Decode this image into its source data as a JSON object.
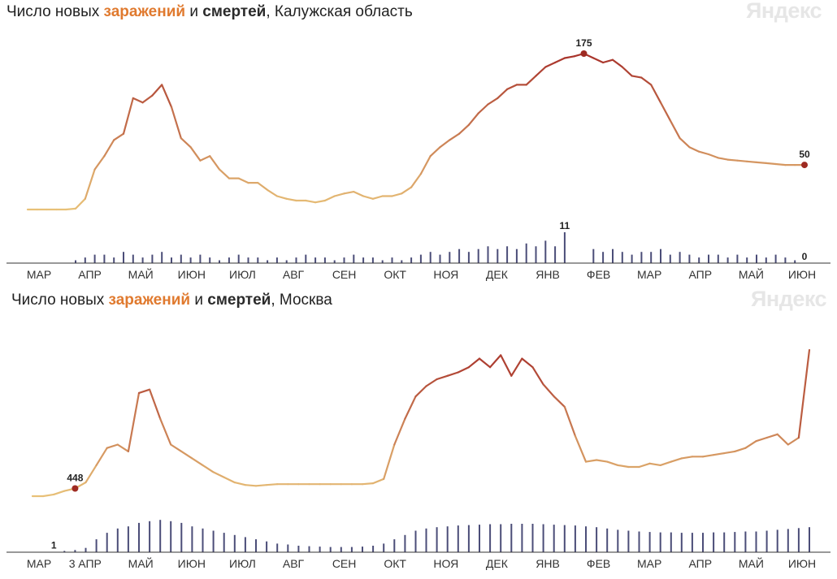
{
  "colors": {
    "low": "#e8c178",
    "high": "#a8322a",
    "deaths": "#4b4d78",
    "marker": "#9e2a22",
    "axis": "#333333",
    "watermark": "#e6e6e6"
  },
  "panels": [
    {
      "title": {
        "prefix": "Число новых ",
        "infections": "заражений",
        "middle": " и ",
        "deaths": "смертей",
        "region": ", Калужская область"
      },
      "watermark": "Яндекс",
      "chart_data": {
        "type": "line",
        "x_axis_months": [
          "МАР",
          "АПР",
          "МАЙ",
          "ИЮН",
          "ИЮЛ",
          "АВГ",
          "СЕН",
          "ОКТ",
          "НОЯ",
          "ДЕК",
          "ЯНВ",
          "ФЕВ",
          "МАР",
          "АПР",
          "МАЙ",
          "ИЮН"
        ],
        "series": [
          {
            "name": "заражений",
            "kind": "line",
            "values": [
              0,
              0,
              0,
              0,
              0,
              1,
              12,
              45,
              60,
              78,
              85,
              125,
              120,
              128,
              140,
              115,
              80,
              70,
              55,
              60,
              45,
              35,
              35,
              30,
              30,
              22,
              15,
              12,
              10,
              10,
              8,
              10,
              15,
              18,
              20,
              15,
              12,
              15,
              15,
              18,
              25,
              40,
              60,
              70,
              78,
              85,
              95,
              108,
              118,
              125,
              135,
              140,
              140,
              150,
              160,
              165,
              170,
              172,
              175,
              170,
              165,
              168,
              160,
              150,
              148,
              140,
              120,
              100,
              80,
              70,
              65,
              62,
              58,
              56,
              55,
              54,
              53,
              52,
              51,
              50,
              50,
              50
            ]
          },
          {
            "name": "смертей",
            "kind": "bars",
            "values": [
              0,
              0,
              0,
              0,
              0,
              1,
              2,
              3,
              3,
              2,
              4,
              3,
              2,
              3,
              4,
              2,
              3,
              2,
              3,
              2,
              1,
              2,
              3,
              2,
              2,
              1,
              2,
              1,
              2,
              3,
              2,
              2,
              1,
              2,
              3,
              2,
              2,
              1,
              2,
              1,
              2,
              3,
              4,
              3,
              4,
              5,
              4,
              5,
              6,
              5,
              6,
              5,
              7,
              6,
              8,
              6,
              11,
              0,
              0,
              5,
              4,
              5,
              4,
              3,
              4,
              4,
              5,
              3,
              4,
              3,
              2,
              3,
              3,
              2,
              3,
              2,
              3,
              2,
              3,
              2,
              1,
              0
            ]
          }
        ],
        "annotations": [
          {
            "label": "175",
            "series": "заражений",
            "value": 175
          },
          {
            "label": "50",
            "series": "заражений",
            "value": 50
          },
          {
            "label": "11",
            "series": "смертей",
            "value": 11
          },
          {
            "label": "0",
            "series": "смертей",
            "value": 0
          }
        ],
        "grid": false
      }
    },
    {
      "title": {
        "prefix": "Число новых ",
        "infections": "заражений",
        "middle": " и ",
        "deaths": "смертей",
        "region": ", Москва"
      },
      "watermark": "Яндекс",
      "chart_data": {
        "type": "line",
        "x_axis_months": [
          "МАР",
          "АПР",
          "МАЙ",
          "ИЮН",
          "ИЮЛ",
          "АВГ",
          "СЕН",
          "ОКТ",
          "НОЯ",
          "ДЕК",
          "ЯНВ",
          "ФЕВ",
          "МАР",
          "АПР",
          "МАЙ",
          "ИЮН"
        ],
        "x_axis_extra": "3",
        "series": [
          {
            "name": "заражений",
            "kind": "line",
            "values": [
              0,
              0,
              100,
              300,
              448,
              800,
              1800,
              2800,
              3000,
              2600,
              6000,
              6200,
              4500,
              3000,
              2600,
              2200,
              1800,
              1400,
              1100,
              800,
              650,
              600,
              650,
              700,
              700,
              700,
              700,
              700,
              700,
              700,
              700,
              700,
              750,
              1000,
              3000,
              4500,
              5800,
              6400,
              6800,
              7000,
              7200,
              7500,
              8000,
              7500,
              8200,
              7000,
              8000,
              7500,
              6500,
              5800,
              5200,
              3500,
              2000,
              2100,
              2000,
              1800,
              1700,
              1700,
              1900,
              1800,
              2000,
              2200,
              2300,
              2300,
              2400,
              2500,
              2600,
              2800,
              3200,
              3400,
              3600,
              3000,
              3400,
              8500
            ]
          },
          {
            "name": "смертей",
            "kind": "bars",
            "values": [
              0,
              0,
              1,
              3,
              5,
              10,
              30,
              45,
              55,
              60,
              68,
              72,
              75,
              72,
              68,
              60,
              55,
              50,
              45,
              40,
              35,
              30,
              25,
              20,
              18,
              15,
              14,
              13,
              12,
              12,
              12,
              13,
              15,
              20,
              30,
              40,
              50,
              55,
              58,
              60,
              62,
              63,
              64,
              65,
              65,
              66,
              66,
              66,
              65,
              64,
              63,
              62,
              60,
              58,
              55,
              52,
              50,
              48,
              47,
              46,
              46,
              45,
              45,
              45,
              46,
              46,
              47,
              48,
              48,
              50,
              52,
              54,
              56,
              58
            ]
          }
        ],
        "annotations": [
          {
            "label": "448",
            "series": "заражений",
            "value": 448
          },
          {
            "label": "1",
            "series": "смертей",
            "value": 1
          }
        ],
        "grid": false
      }
    }
  ]
}
